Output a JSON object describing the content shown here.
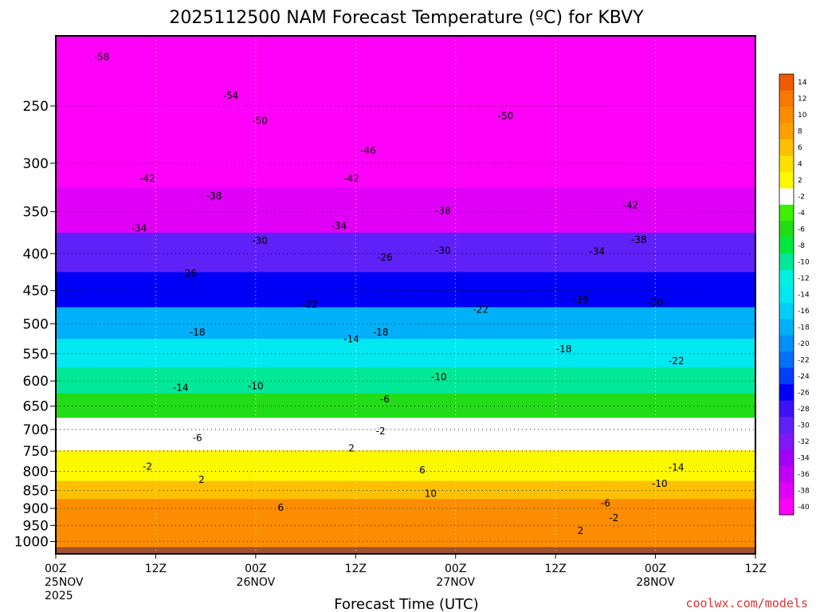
{
  "chart_data": {
    "type": "heatmap",
    "title": "2025112500 NAM Forecast Temperature (ºC) for KBVY",
    "xlabel": "Forecast Time (UTC)",
    "ylabel": "",
    "y_scale": "log",
    "y_inverted": true,
    "ylim": [
      200,
      1040
    ],
    "y_ticks": [
      250,
      300,
      350,
      400,
      450,
      500,
      550,
      600,
      650,
      700,
      750,
      800,
      850,
      900,
      950,
      1000
    ],
    "x_hours_range": [
      0,
      84
    ],
    "x_ticks": [
      {
        "hour": 0,
        "line1": "00Z",
        "line2": "25NOV",
        "line3": "2025"
      },
      {
        "hour": 12,
        "line1": "12Z",
        "line2": "",
        "line3": ""
      },
      {
        "hour": 24,
        "line1": "00Z",
        "line2": "26NOV",
        "line3": ""
      },
      {
        "hour": 36,
        "line1": "12Z",
        "line2": "",
        "line3": ""
      },
      {
        "hour": 48,
        "line1": "00Z",
        "line2": "27NOV",
        "line3": ""
      },
      {
        "hour": 60,
        "line1": "12Z",
        "line2": "",
        "line3": ""
      },
      {
        "hour": 72,
        "line1": "00Z",
        "line2": "28NOV",
        "line3": ""
      },
      {
        "hour": 84,
        "line1": "12Z",
        "line2": "",
        "line3": ""
      }
    ],
    "grid": true,
    "colorbar": {
      "position": "right",
      "levels": [
        "14",
        "12",
        "10",
        "8",
        "6",
        "4",
        "2",
        "-2",
        "-4",
        "-6",
        "-8",
        "-10",
        "-12",
        "-14",
        "-16",
        "-18",
        "-20",
        "-22",
        "-24",
        "-26",
        "-28",
        "-30",
        "-32",
        "-34",
        "-36",
        "-38",
        "-40"
      ],
      "colors": [
        "#f05a00",
        "#f87800",
        "#fc8c00",
        "#fca000",
        "#fcc000",
        "#fce000",
        "#fcf800",
        "#ffffff",
        "#3cf000",
        "#22dc18",
        "#00e840",
        "#00e898",
        "#00f0e0",
        "#00e8f0",
        "#00d0f8",
        "#00b0f8",
        "#0090f8",
        "#0070f8",
        "#0040f8",
        "#0000f8",
        "#4010f8",
        "#6020f8",
        "#8018f8",
        "#a000f8",
        "#c000f8",
        "#e000f8",
        "#ff00f8"
      ]
    },
    "ground_color": "#a0522d",
    "temperature_levels": [
      {
        "pressure": 250,
        "temp": -54
      },
      {
        "pressure": 300,
        "temp": -46
      },
      {
        "pressure": 350,
        "temp": -38
      },
      {
        "pressure": 400,
        "temp": -30
      },
      {
        "pressure": 450,
        "temp": -26
      },
      {
        "pressure": 500,
        "temp": -18
      },
      {
        "pressure": 550,
        "temp": -14
      },
      {
        "pressure": 600,
        "temp": -10
      },
      {
        "pressure": 650,
        "temp": -6
      },
      {
        "pressure": 700,
        "temp": -2
      },
      {
        "pressure": 800,
        "temp": 2
      },
      {
        "pressure": 850,
        "temp": 6
      },
      {
        "pressure": 900,
        "temp": 10
      }
    ],
    "contour_labels": [
      {
        "text": "-58",
        "hour": 5.5,
        "pressure": 214
      },
      {
        "text": "-54",
        "hour": 21,
        "pressure": 242
      },
      {
        "text": "-50",
        "hour": 24.5,
        "pressure": 262
      },
      {
        "text": "-50",
        "hour": 54,
        "pressure": 258
      },
      {
        "text": "-46",
        "hour": 37.5,
        "pressure": 288
      },
      {
        "text": "-42",
        "hour": 11,
        "pressure": 315
      },
      {
        "text": "-42",
        "hour": 35.5,
        "pressure": 315
      },
      {
        "text": "-42",
        "hour": 69,
        "pressure": 343
      },
      {
        "text": "-38",
        "hour": 19,
        "pressure": 333
      },
      {
        "text": "-38",
        "hour": 46.5,
        "pressure": 349
      },
      {
        "text": "-38",
        "hour": 70,
        "pressure": 383
      },
      {
        "text": "-34",
        "hour": 10,
        "pressure": 369
      },
      {
        "text": "-34",
        "hour": 34,
        "pressure": 366
      },
      {
        "text": "-34",
        "hour": 65,
        "pressure": 397
      },
      {
        "text": "-30",
        "hour": 24.5,
        "pressure": 384
      },
      {
        "text": "-30",
        "hour": 46.5,
        "pressure": 396
      },
      {
        "text": "-30",
        "hour": 72,
        "pressure": 467
      },
      {
        "text": "-26",
        "hour": 16,
        "pressure": 426
      },
      {
        "text": "-26",
        "hour": 39.5,
        "pressure": 405
      },
      {
        "text": "-26",
        "hour": 63,
        "pressure": 463
      },
      {
        "text": "-22",
        "hour": 30.5,
        "pressure": 470
      },
      {
        "text": "-22",
        "hour": 51,
        "pressure": 478
      },
      {
        "text": "-22",
        "hour": 74.5,
        "pressure": 563
      },
      {
        "text": "-18",
        "hour": 17,
        "pressure": 514
      },
      {
        "text": "-18",
        "hour": 39,
        "pressure": 514
      },
      {
        "text": "-18",
        "hour": 61,
        "pressure": 542
      },
      {
        "text": "-14",
        "hour": 15,
        "pressure": 613
      },
      {
        "text": "-14",
        "hour": 35.5,
        "pressure": 525
      },
      {
        "text": "-14",
        "hour": 74.5,
        "pressure": 790
      },
      {
        "text": "-10",
        "hour": 24,
        "pressure": 610
      },
      {
        "text": "-10",
        "hour": 46,
        "pressure": 592
      },
      {
        "text": "-10",
        "hour": 72.5,
        "pressure": 832
      },
      {
        "text": "-6",
        "hour": 17,
        "pressure": 719
      },
      {
        "text": "-6",
        "hour": 39.5,
        "pressure": 636
      },
      {
        "text": "-6",
        "hour": 66,
        "pressure": 885
      },
      {
        "text": "-2",
        "hour": 11,
        "pressure": 788
      },
      {
        "text": "-2",
        "hour": 39,
        "pressure": 704
      },
      {
        "text": "-2",
        "hour": 67,
        "pressure": 928
      },
      {
        "text": "2",
        "hour": 17.5,
        "pressure": 821
      },
      {
        "text": "2",
        "hour": 35.5,
        "pressure": 743
      },
      {
        "text": "2",
        "hour": 63,
        "pressure": 966
      },
      {
        "text": "6",
        "hour": 27,
        "pressure": 898
      },
      {
        "text": "6",
        "hour": 44,
        "pressure": 797
      },
      {
        "text": "10",
        "hour": 45,
        "pressure": 859
      }
    ],
    "credit": "coolwx.com/models"
  }
}
